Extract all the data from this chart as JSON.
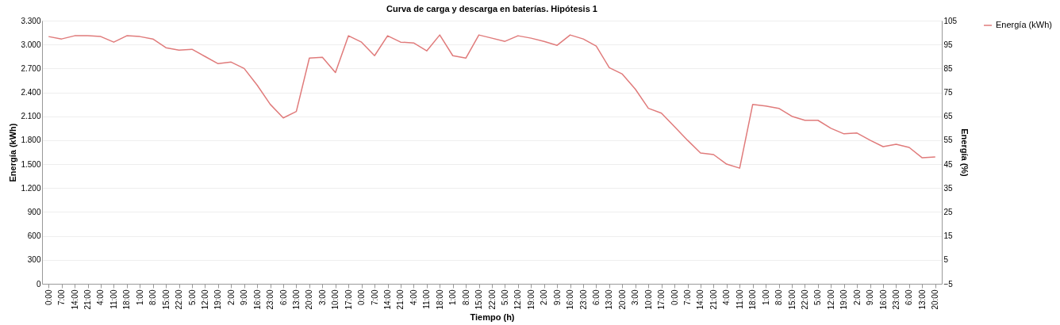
{
  "chart_data": {
    "type": "line",
    "title": "Curva de carga y descarga en baterías. Hipótesis 1",
    "xlabel": "Tiempo (h)",
    "ylabel": "Energía  (kWh)",
    "y2label": "Energía (%)",
    "categories": [
      "0:00",
      "7:00",
      "14:00",
      "21:00",
      "4:00",
      "11:00",
      "18:00",
      "1:00",
      "8:00",
      "15:00",
      "22:00",
      "5:00",
      "12:00",
      "19:00",
      "2:00",
      "9:00",
      "16:00",
      "23:00",
      "6:00",
      "13:00",
      "20:00",
      "3:00",
      "10:00",
      "17:00",
      "0:00",
      "7:00",
      "14:00",
      "21:00",
      "4:00",
      "11:00",
      "18:00",
      "1:00",
      "8:00",
      "15:00",
      "22:00",
      "5:00",
      "12:00",
      "19:00",
      "2:00",
      "9:00",
      "16:00",
      "23:00",
      "6:00",
      "13:00",
      "20:00",
      "3:00",
      "10:00",
      "17:00",
      "0:00",
      "7:00",
      "14:00",
      "21:00",
      "4:00",
      "11:00",
      "18:00",
      "1:00",
      "8:00",
      "15:00",
      "22:00",
      "5:00",
      "12:00",
      "19:00",
      "2:00",
      "9:00",
      "16:00",
      "23:00",
      "6:00",
      "13:00",
      "20:00"
    ],
    "series": [
      {
        "name": "Energía (kWh)",
        "color": "#e07b7b",
        "values": [
          3100,
          3070,
          3110,
          3110,
          3100,
          3030,
          3110,
          3100,
          3070,
          2960,
          2930,
          2940,
          2850,
          2760,
          2780,
          2700,
          2490,
          2250,
          2080,
          2160,
          2830,
          2840,
          2650,
          3110,
          3030,
          2860,
          3110,
          3030,
          3020,
          2920,
          3120,
          2860,
          2830,
          3120,
          3080,
          3040,
          3110,
          3080,
          3040,
          2990,
          3120,
          3070,
          2980,
          2710,
          2630,
          2440,
          2200,
          2140,
          1970,
          1800,
          1640,
          1620,
          1500,
          1450,
          2250,
          2230,
          2200,
          2100,
          2050,
          2050,
          1950,
          1880,
          1890,
          1800,
          1720,
          1750,
          1710,
          1580,
          1590
        ]
      }
    ],
    "ylim": [
      0,
      3300
    ],
    "yticks": [
      0,
      300,
      600,
      900,
      {
        "value": 1200,
        "label": "1.200"
      },
      {
        "value": 1500,
        "label": "1.500"
      },
      {
        "value": 1800,
        "label": "1.800"
      },
      {
        "value": 2100,
        "label": "2.100"
      },
      {
        "value": 2400,
        "label": "2.400"
      },
      {
        "value": 2700,
        "label": "2.700"
      },
      {
        "value": 3000,
        "label": "3.000"
      },
      {
        "value": 3300,
        "label": "3.300"
      }
    ],
    "y2lim": [
      -5,
      105
    ],
    "y2ticks": [
      -5,
      5,
      15,
      25,
      35,
      45,
      55,
      65,
      75,
      85,
      95,
      105
    ],
    "grid": "y",
    "legend": "right",
    "marker": "none",
    "line_style": "solid"
  }
}
